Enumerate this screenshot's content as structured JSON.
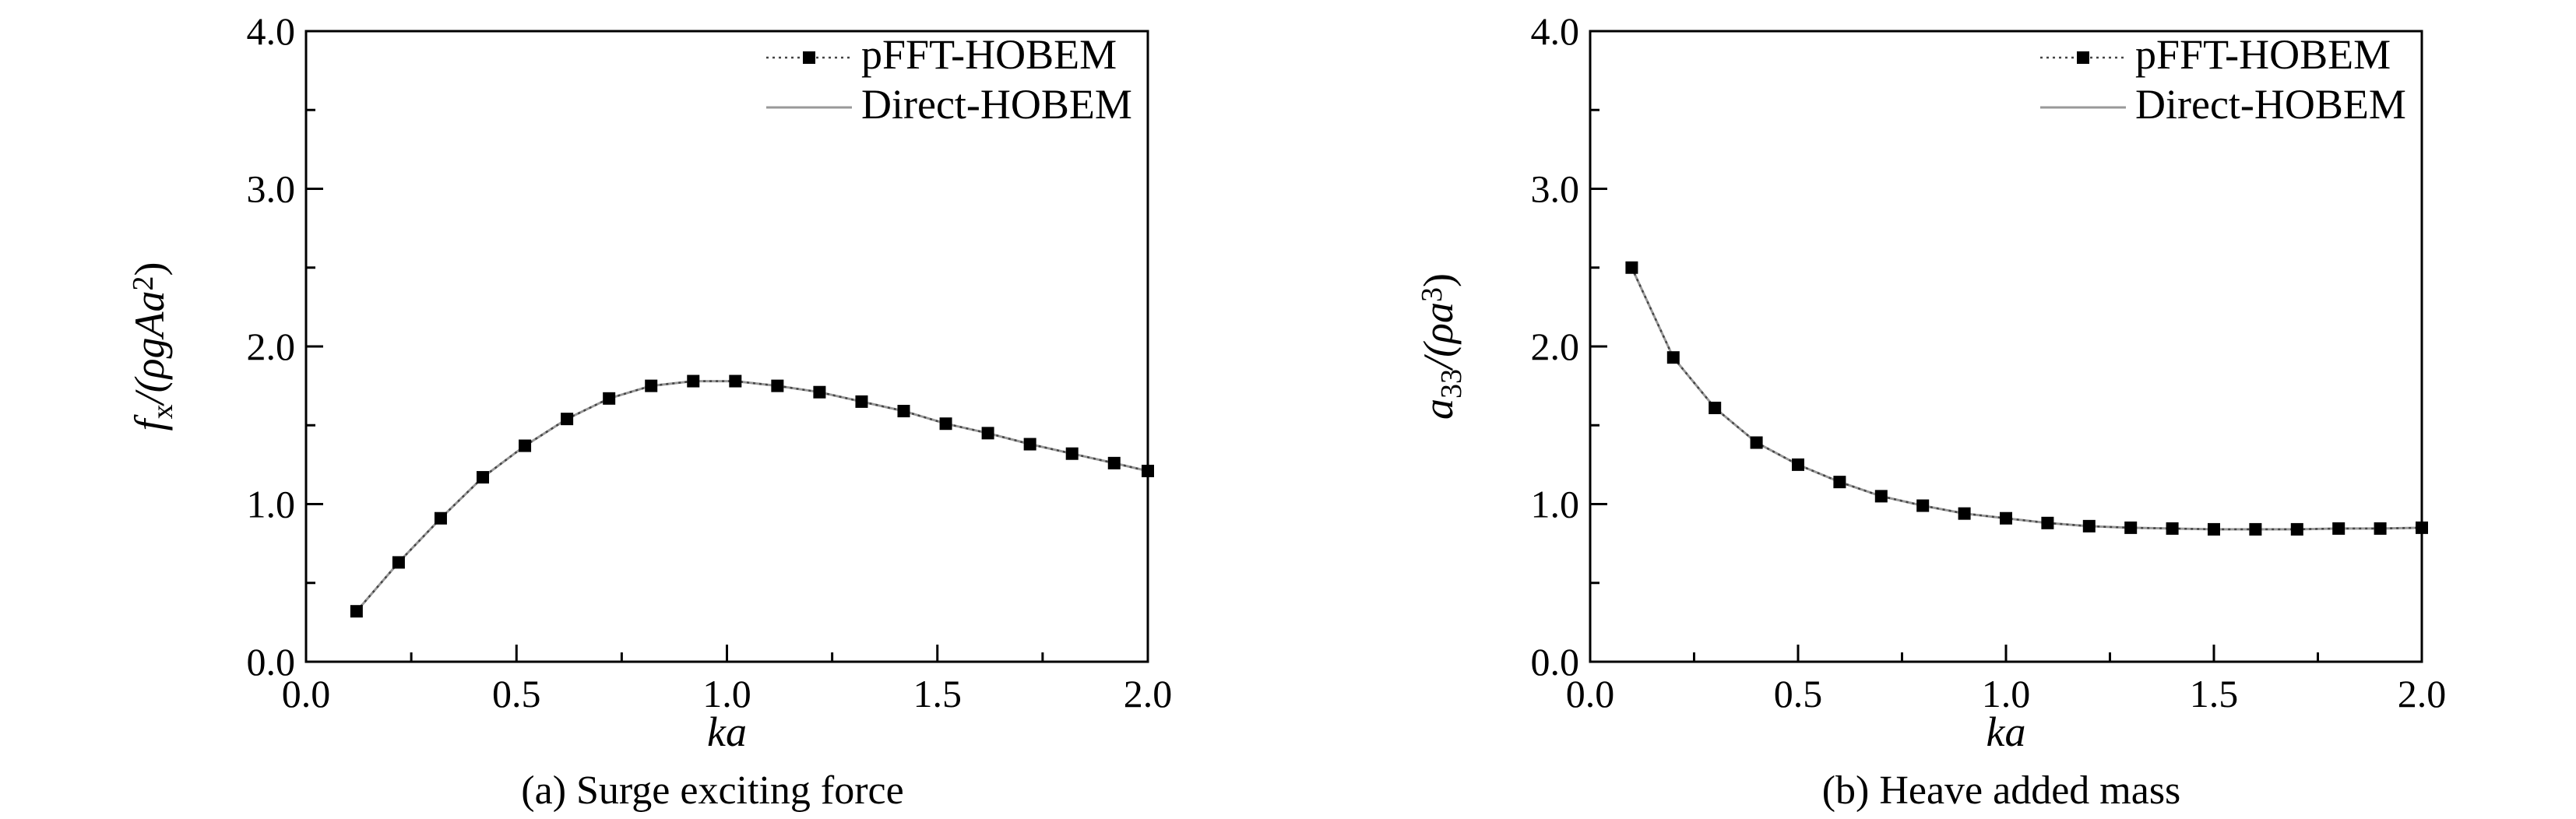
{
  "chart_data": [
    {
      "type": "line",
      "caption": "(a) Surge exciting force",
      "xlabel": "ka",
      "ylabel": {
        "base": "f",
        "sub": "x",
        "mid": "/(ρgAa",
        "sup": "2",
        "end": ")"
      },
      "xlim": [
        0.0,
        2.0
      ],
      "ylim": [
        0.0,
        4.0
      ],
      "xticks": [
        0.0,
        0.5,
        1.0,
        1.5,
        2.0
      ],
      "yticks": [
        0.0,
        1.0,
        2.0,
        3.0,
        4.0
      ],
      "xtick_labels": [
        "0.0",
        "0.5",
        "1.0",
        "1.5",
        "2.0"
      ],
      "ytick_labels": [
        "0.0",
        "1.0",
        "2.0",
        "3.0",
        "4.0"
      ],
      "grid": false,
      "legend_position": "top-right",
      "series": [
        {
          "name": "pFFT-HOBEM",
          "style": "markers-dotted",
          "color": "#000000",
          "x": [
            0.12,
            0.22,
            0.32,
            0.42,
            0.52,
            0.62,
            0.72,
            0.82,
            0.92,
            1.02,
            1.12,
            1.22,
            1.32,
            1.42,
            1.52,
            1.62,
            1.72,
            1.82,
            1.92,
            2.0
          ],
          "y": [
            0.32,
            0.63,
            0.91,
            1.17,
            1.37,
            1.54,
            1.67,
            1.75,
            1.78,
            1.78,
            1.75,
            1.71,
            1.65,
            1.59,
            1.51,
            1.45,
            1.38,
            1.32,
            1.26,
            1.21
          ]
        },
        {
          "name": "Direct-HOBEM",
          "style": "solid-line",
          "color": "#999999",
          "x": [
            0.12,
            0.22,
            0.32,
            0.42,
            0.52,
            0.62,
            0.72,
            0.82,
            0.92,
            1.02,
            1.12,
            1.22,
            1.32,
            1.42,
            1.52,
            1.62,
            1.72,
            1.82,
            1.92,
            2.0
          ],
          "y": [
            0.32,
            0.63,
            0.91,
            1.17,
            1.37,
            1.54,
            1.67,
            1.75,
            1.78,
            1.78,
            1.75,
            1.71,
            1.65,
            1.59,
            1.51,
            1.45,
            1.38,
            1.32,
            1.26,
            1.21
          ]
        }
      ]
    },
    {
      "type": "line",
      "caption": "(b) Heave added mass",
      "xlabel": "ka",
      "ylabel": {
        "base": "a",
        "sub": "33",
        "mid": "/(ρa",
        "sup": "3",
        "end": ")"
      },
      "xlim": [
        0.0,
        2.0
      ],
      "ylim": [
        0.0,
        4.0
      ],
      "xticks": [
        0.0,
        0.5,
        1.0,
        1.5,
        2.0
      ],
      "yticks": [
        0.0,
        1.0,
        2.0,
        3.0,
        4.0
      ],
      "xtick_labels": [
        "0.0",
        "0.5",
        "1.0",
        "1.5",
        "2.0"
      ],
      "ytick_labels": [
        "0.0",
        "1.0",
        "2.0",
        "3.0",
        "4.0"
      ],
      "grid": false,
      "legend_position": "top-right",
      "series": [
        {
          "name": "pFFT-HOBEM",
          "style": "markers-dotted",
          "color": "#000000",
          "x": [
            0.1,
            0.2,
            0.3,
            0.4,
            0.5,
            0.6,
            0.7,
            0.8,
            0.9,
            1.0,
            1.1,
            1.2,
            1.3,
            1.4,
            1.5,
            1.6,
            1.7,
            1.8,
            1.9,
            2.0
          ],
          "y": [
            2.5,
            1.93,
            1.61,
            1.39,
            1.25,
            1.14,
            1.05,
            0.99,
            0.94,
            0.91,
            0.88,
            0.86,
            0.85,
            0.845,
            0.84,
            0.84,
            0.84,
            0.845,
            0.845,
            0.85
          ]
        },
        {
          "name": "Direct-HOBEM",
          "style": "solid-line",
          "color": "#999999",
          "x": [
            0.1,
            0.2,
            0.3,
            0.4,
            0.5,
            0.6,
            0.7,
            0.8,
            0.9,
            1.0,
            1.1,
            1.2,
            1.3,
            1.4,
            1.5,
            1.6,
            1.7,
            1.8,
            1.9,
            2.0
          ],
          "y": [
            2.5,
            1.93,
            1.61,
            1.39,
            1.25,
            1.14,
            1.05,
            0.99,
            0.94,
            0.91,
            0.88,
            0.86,
            0.85,
            0.845,
            0.84,
            0.84,
            0.84,
            0.845,
            0.845,
            0.85
          ]
        }
      ]
    }
  ]
}
